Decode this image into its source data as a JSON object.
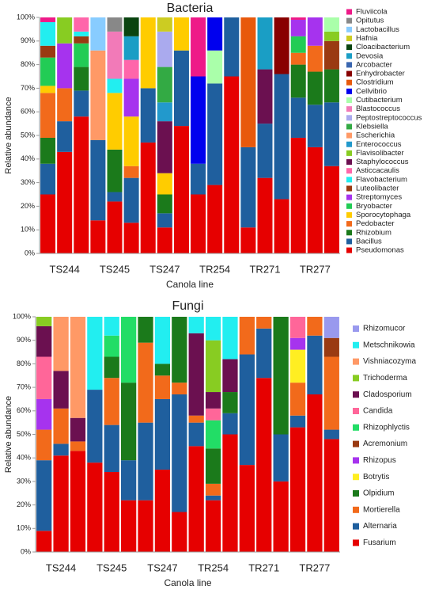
{
  "chart_data": [
    {
      "type": "bar",
      "stacked": true,
      "title": "Bacteria",
      "xlabel": "Canola line",
      "ylabel": "Relative abundance",
      "categories": [
        null,
        "TS244",
        null,
        null,
        "TS245",
        null,
        null,
        "TS247",
        null,
        null,
        "TR254",
        null,
        null,
        "TR271",
        null,
        null,
        "TR277",
        null
      ],
      "ylim": [
        0,
        100
      ],
      "yticks": [
        {
          "value": 0,
          "label": "0%"
        },
        {
          "value": 10,
          "label": "10%"
        },
        {
          "value": 20,
          "label": "20%"
        },
        {
          "value": 30,
          "label": "30%"
        },
        {
          "value": 40,
          "label": "40%"
        },
        {
          "value": 50,
          "label": "50%"
        },
        {
          "value": 60,
          "label": "60%"
        },
        {
          "value": 70,
          "label": "70%"
        },
        {
          "value": 80,
          "label": "80%"
        },
        {
          "value": 90,
          "label": "90%"
        },
        {
          "value": 100,
          "label": "100%"
        }
      ],
      "series": [
        {
          "name": "Pseudomonas",
          "color": "#e60000",
          "values": [
            25,
            43,
            58,
            14,
            22,
            13,
            47,
            11,
            54,
            25,
            29,
            75,
            11,
            32,
            23,
            49,
            45,
            37
          ]
        },
        {
          "name": "Bacillus",
          "color": "#1f5f9e",
          "values": [
            13,
            13,
            11,
            34,
            4,
            19,
            23,
            6,
            32,
            13,
            43,
            25,
            34,
            23,
            53,
            17,
            18,
            27
          ]
        },
        {
          "name": "Rhizobium",
          "color": "#1b7a1b",
          "values": [
            11,
            0,
            10,
            0,
            18,
            0,
            0,
            8,
            0,
            0,
            0,
            0,
            0,
            0,
            0,
            14,
            14,
            14
          ]
        },
        {
          "name": "Pedobacter",
          "color": "#f26a1b",
          "values": [
            19,
            14,
            0,
            0,
            0,
            5,
            0,
            0,
            0,
            0,
            0,
            0,
            0,
            0,
            0,
            5,
            11,
            0
          ]
        },
        {
          "name": "Sporocytophaga",
          "color": "#ffcc00",
          "values": [
            3,
            0,
            0,
            0,
            24,
            21,
            30,
            9,
            14,
            0,
            0,
            0,
            0,
            0,
            0,
            0,
            0,
            0
          ]
        },
        {
          "name": "Bryobacter",
          "color": "#22cc55",
          "values": [
            12,
            0,
            10,
            0,
            0,
            0,
            0,
            0,
            0,
            0,
            0,
            0,
            0,
            0,
            0,
            7,
            0,
            0
          ]
        },
        {
          "name": "Streptomyces",
          "color": "#a633ee",
          "values": [
            0,
            19,
            0,
            0,
            0,
            16,
            0,
            0,
            0,
            0,
            0,
            0,
            0,
            0,
            0,
            7,
            12,
            0
          ]
        },
        {
          "name": "Luteolibacter",
          "color": "#9a3a12",
          "values": [
            5,
            0,
            3,
            0,
            0,
            0,
            0,
            0,
            0,
            0,
            0,
            0,
            0,
            0,
            0,
            0,
            0,
            12
          ]
        },
        {
          "name": "Flavobacterium",
          "color": "#22eef0",
          "values": [
            10,
            0,
            2,
            0,
            6,
            0,
            0,
            0,
            0,
            0,
            0,
            0,
            0,
            0,
            0,
            0,
            0,
            0
          ]
        },
        {
          "name": "Asticcacaulis",
          "color": "#ff66aa",
          "values": [
            0,
            0,
            6,
            0,
            0,
            8,
            0,
            0,
            0,
            0,
            0,
            0,
            0,
            0,
            0,
            0,
            0,
            0
          ]
        },
        {
          "name": "Staphylococcus",
          "color": "#6b1050",
          "values": [
            0,
            0,
            0,
            0,
            0,
            0,
            0,
            22,
            0,
            0,
            0,
            0,
            0,
            23,
            0,
            0,
            0,
            0
          ]
        },
        {
          "name": "Flavisolibacter",
          "color": "#88cc22",
          "values": [
            0,
            11,
            0,
            0,
            0,
            0,
            0,
            0,
            0,
            0,
            0,
            0,
            0,
            0,
            0,
            0,
            0,
            4
          ]
        },
        {
          "name": "Enterococcus",
          "color": "#2299cc",
          "values": [
            0,
            0,
            0,
            0,
            0,
            0,
            0,
            8,
            0,
            0,
            0,
            0,
            0,
            0,
            0,
            0,
            0,
            0
          ]
        },
        {
          "name": "Escherichia",
          "color": "#ff9966",
          "values": [
            0,
            0,
            0,
            38,
            0,
            0,
            0,
            0,
            0,
            0,
            0,
            0,
            0,
            0,
            0,
            0,
            0,
            0
          ]
        },
        {
          "name": "Klebsiella",
          "color": "#33aa44",
          "values": [
            0,
            0,
            0,
            0,
            0,
            0,
            0,
            15,
            0,
            0,
            0,
            0,
            0,
            0,
            0,
            0,
            0,
            0
          ]
        },
        {
          "name": "Peptostreptococcus",
          "color": "#aaaaee",
          "values": [
            0,
            0,
            0,
            0,
            0,
            0,
            0,
            15,
            0,
            0,
            0,
            0,
            0,
            0,
            0,
            0,
            0,
            0
          ]
        },
        {
          "name": "Blastococcus",
          "color": "#f27ab8",
          "values": [
            0,
            0,
            0,
            0,
            20,
            0,
            0,
            0,
            0,
            0,
            0,
            0,
            0,
            0,
            0,
            0,
            0,
            0
          ]
        },
        {
          "name": "Cutibacterium",
          "color": "#aaffaa",
          "values": [
            0,
            0,
            0,
            0,
            0,
            0,
            0,
            0,
            0,
            0,
            14,
            0,
            0,
            0,
            0,
            0,
            0,
            6
          ]
        },
        {
          "name": "Cellvibrio",
          "color": "#0000ee",
          "values": [
            0,
            0,
            0,
            0,
            0,
            0,
            0,
            0,
            0,
            37,
            14,
            0,
            0,
            0,
            0,
            0,
            0,
            0
          ]
        },
        {
          "name": "Clostridium",
          "color": "#e8590c",
          "values": [
            0,
            0,
            0,
            0,
            0,
            0,
            0,
            0,
            0,
            0,
            0,
            0,
            55,
            0,
            0,
            0,
            0,
            0
          ]
        },
        {
          "name": "Enhydrobacter",
          "color": "#880000",
          "values": [
            0,
            0,
            0,
            0,
            0,
            0,
            0,
            0,
            0,
            0,
            0,
            0,
            0,
            0,
            24,
            0,
            0,
            0
          ]
        },
        {
          "name": "Arcobacter",
          "color": "#3a66b0",
          "values": [
            0,
            0,
            0,
            0,
            0,
            0,
            0,
            0,
            0,
            0,
            0,
            0,
            0,
            0,
            0,
            0,
            0,
            0
          ]
        },
        {
          "name": "Devosia",
          "color": "#1a9ec5",
          "values": [
            0,
            0,
            0,
            0,
            0,
            10,
            0,
            0,
            0,
            0,
            0,
            0,
            0,
            22,
            0,
            0,
            0,
            0
          ]
        },
        {
          "name": "Cloacibacterium",
          "color": "#0a4410",
          "values": [
            0,
            0,
            0,
            0,
            0,
            8,
            0,
            0,
            0,
            0,
            0,
            0,
            0,
            0,
            0,
            0,
            0,
            0
          ]
        },
        {
          "name": "Hafnia",
          "color": "#cccc22",
          "values": [
            0,
            0,
            0,
            0,
            0,
            0,
            0,
            6,
            0,
            0,
            0,
            0,
            0,
            0,
            0,
            0,
            0,
            0
          ]
        },
        {
          "name": "Lactobacillus",
          "color": "#88ccff",
          "values": [
            0,
            0,
            0,
            14,
            0,
            0,
            0,
            0,
            0,
            0,
            0,
            0,
            0,
            0,
            0,
            0,
            0,
            0
          ]
        },
        {
          "name": "Opitutus",
          "color": "#888888",
          "values": [
            0,
            0,
            0,
            0,
            6,
            0,
            0,
            0,
            0,
            0,
            0,
            0,
            0,
            0,
            0,
            0,
            0,
            0
          ]
        },
        {
          "name": "Fluviicola",
          "color": "#ee1a88",
          "values": [
            2,
            0,
            0,
            0,
            0,
            0,
            0,
            0,
            0,
            25,
            0,
            0,
            0,
            0,
            0,
            1,
            0,
            0
          ]
        }
      ]
    },
    {
      "type": "bar",
      "stacked": true,
      "title": "Fungi",
      "xlabel": "Canola line",
      "ylabel": "Relative abundance",
      "categories": [
        null,
        "TS244",
        null,
        null,
        "TS245",
        null,
        null,
        "TS247",
        null,
        null,
        "TR254",
        null,
        null,
        "TR271",
        null,
        null,
        "TR277",
        null
      ],
      "ylim": [
        0,
        100
      ],
      "yticks": [
        {
          "value": 0,
          "label": "0%"
        },
        {
          "value": 10,
          "label": "10%"
        },
        {
          "value": 20,
          "label": "20%"
        },
        {
          "value": 30,
          "label": "30%"
        },
        {
          "value": 40,
          "label": "40%"
        },
        {
          "value": 50,
          "label": "50%"
        },
        {
          "value": 60,
          "label": "60%"
        },
        {
          "value": 70,
          "label": "70%"
        },
        {
          "value": 80,
          "label": "80%"
        },
        {
          "value": 90,
          "label": "90%"
        },
        {
          "value": 100,
          "label": "100%"
        }
      ],
      "series": [
        {
          "name": "Fusarium",
          "color": "#e60000",
          "values": [
            9,
            41,
            43,
            38,
            34,
            22,
            22,
            35,
            17,
            45,
            22,
            50,
            37,
            74,
            30,
            53,
            67,
            48
          ]
        },
        {
          "name": "Alternaria",
          "color": "#1f5f9e",
          "values": [
            30,
            5,
            0,
            31,
            20,
            17,
            33,
            30,
            50,
            10,
            2,
            9,
            47,
            21,
            20,
            5,
            25,
            4
          ]
        },
        {
          "name": "Mortierella",
          "color": "#f26a1b",
          "values": [
            13,
            15,
            4,
            0,
            20,
            0,
            34,
            10,
            5,
            3,
            5,
            0,
            16,
            5,
            0,
            14,
            8,
            31
          ]
        },
        {
          "name": "Olpidium",
          "color": "#1b7a1b",
          "values": [
            0,
            0,
            0,
            0,
            9,
            33,
            11,
            5,
            28,
            0,
            15,
            9,
            0,
            0,
            50,
            0,
            0,
            0
          ]
        },
        {
          "name": "Botrytis",
          "color": "#ffee22",
          "values": [
            0,
            0,
            0,
            0,
            0,
            0,
            0,
            0,
            0,
            0,
            0,
            0,
            0,
            0,
            0,
            14,
            0,
            0
          ]
        },
        {
          "name": "Rhizopus",
          "color": "#a633ee",
          "values": [
            13,
            0,
            0,
            0,
            0,
            0,
            0,
            0,
            0,
            0,
            0,
            0,
            0,
            0,
            0,
            5,
            0,
            0
          ]
        },
        {
          "name": "Acremonium",
          "color": "#9a3a12",
          "values": [
            0,
            0,
            0,
            0,
            0,
            0,
            0,
            0,
            0,
            0,
            0,
            0,
            0,
            0,
            0,
            0,
            0,
            8
          ]
        },
        {
          "name": "Rhizophlyctis",
          "color": "#22dd66",
          "values": [
            0,
            0,
            0,
            0,
            9,
            28,
            0,
            0,
            0,
            0,
            12,
            0,
            0,
            0,
            0,
            0,
            0,
            0
          ]
        },
        {
          "name": "Candida",
          "color": "#ff6699",
          "values": [
            18,
            0,
            0,
            0,
            0,
            0,
            0,
            0,
            0,
            0,
            5,
            0,
            0,
            0,
            0,
            9,
            0,
            0
          ]
        },
        {
          "name": "Cladosporium",
          "color": "#6b1050",
          "values": [
            13,
            16,
            10,
            0,
            0,
            0,
            0,
            0,
            0,
            35,
            7,
            14,
            0,
            0,
            0,
            0,
            0,
            0
          ]
        },
        {
          "name": "Trichoderma",
          "color": "#88cc22",
          "values": [
            4,
            0,
            0,
            0,
            0,
            0,
            0,
            0,
            0,
            0,
            22,
            0,
            0,
            0,
            0,
            0,
            0,
            0
          ]
        },
        {
          "name": "Vishniacozyma",
          "color": "#ff9966",
          "values": [
            0,
            23,
            43,
            0,
            0,
            0,
            0,
            0,
            0,
            0,
            0,
            0,
            0,
            0,
            0,
            0,
            0,
            0
          ]
        },
        {
          "name": "Metschnikowia",
          "color": "#22eef0",
          "values": [
            0,
            0,
            0,
            31,
            8,
            0,
            0,
            20,
            0,
            7,
            10,
            18,
            0,
            0,
            0,
            0,
            0,
            0
          ]
        },
        {
          "name": "Rhizomucor",
          "color": "#9999ee",
          "values": [
            0,
            0,
            0,
            0,
            0,
            0,
            0,
            0,
            0,
            0,
            0,
            0,
            0,
            0,
            0,
            0,
            0,
            9
          ]
        }
      ]
    }
  ]
}
